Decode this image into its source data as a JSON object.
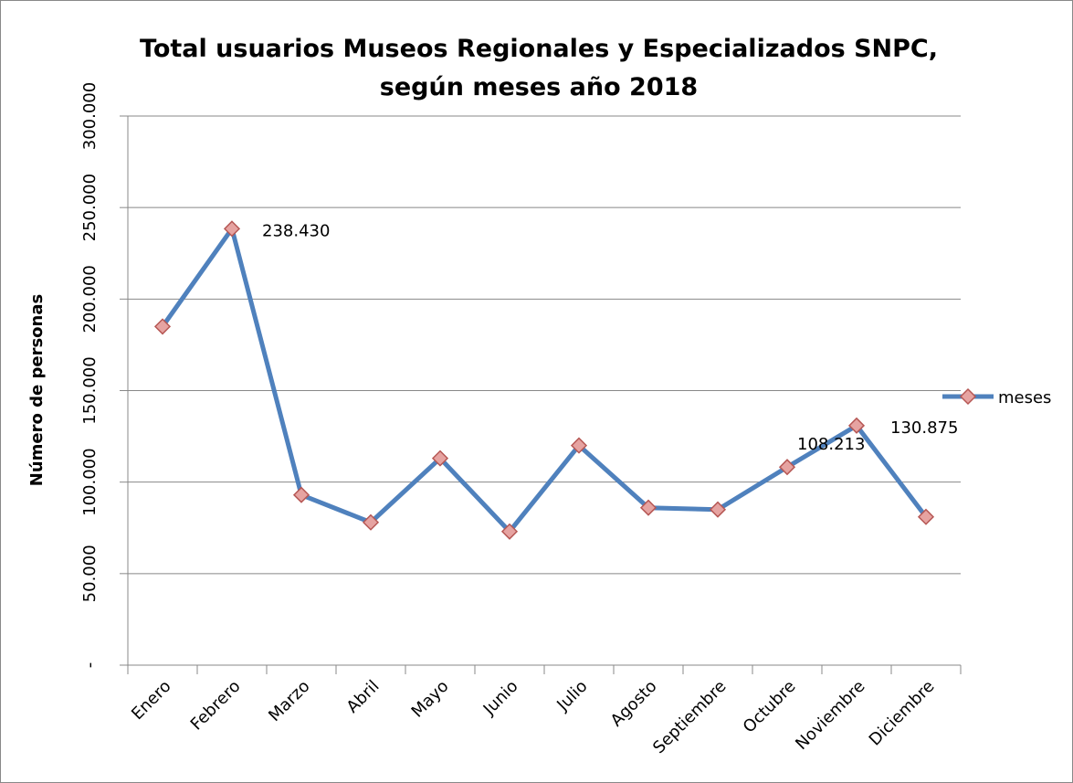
{
  "chart_data": {
    "type": "line",
    "title": [
      "Total usuarios Museos Regionales y Especializados SNPC,",
      "según meses año 2018"
    ],
    "y_axis_label": "Número de personas",
    "categories": [
      "Enero",
      "Febrero",
      "Marzo",
      "Abril",
      "Mayo",
      "Junio",
      "Julio",
      "Agosto",
      "Septiembre",
      "Octubre",
      "Noviembre",
      "Diciembre"
    ],
    "series": [
      {
        "name": "meses",
        "color": "#4f81bd",
        "values": [
          185000,
          238430,
          93000,
          78000,
          113000,
          73000,
          120000,
          86000,
          85000,
          108213,
          130875,
          81000
        ],
        "value_labels": [
          null,
          "238.430",
          null,
          null,
          null,
          null,
          null,
          null,
          null,
          "108.213",
          "130.875",
          null
        ]
      }
    ],
    "ylim": [
      0,
      300000
    ],
    "yticks": [
      {
        "value": 0,
        "label": "-"
      },
      {
        "value": 50000,
        "label": "50.000"
      },
      {
        "value": 100000,
        "label": "100.000"
      },
      {
        "value": 150000,
        "label": "150.000"
      },
      {
        "value": 200000,
        "label": "200.000"
      },
      {
        "value": 250000,
        "label": "250.000"
      },
      {
        "value": 300000,
        "label": "300.000"
      }
    ],
    "grid": true,
    "legend": "right"
  }
}
